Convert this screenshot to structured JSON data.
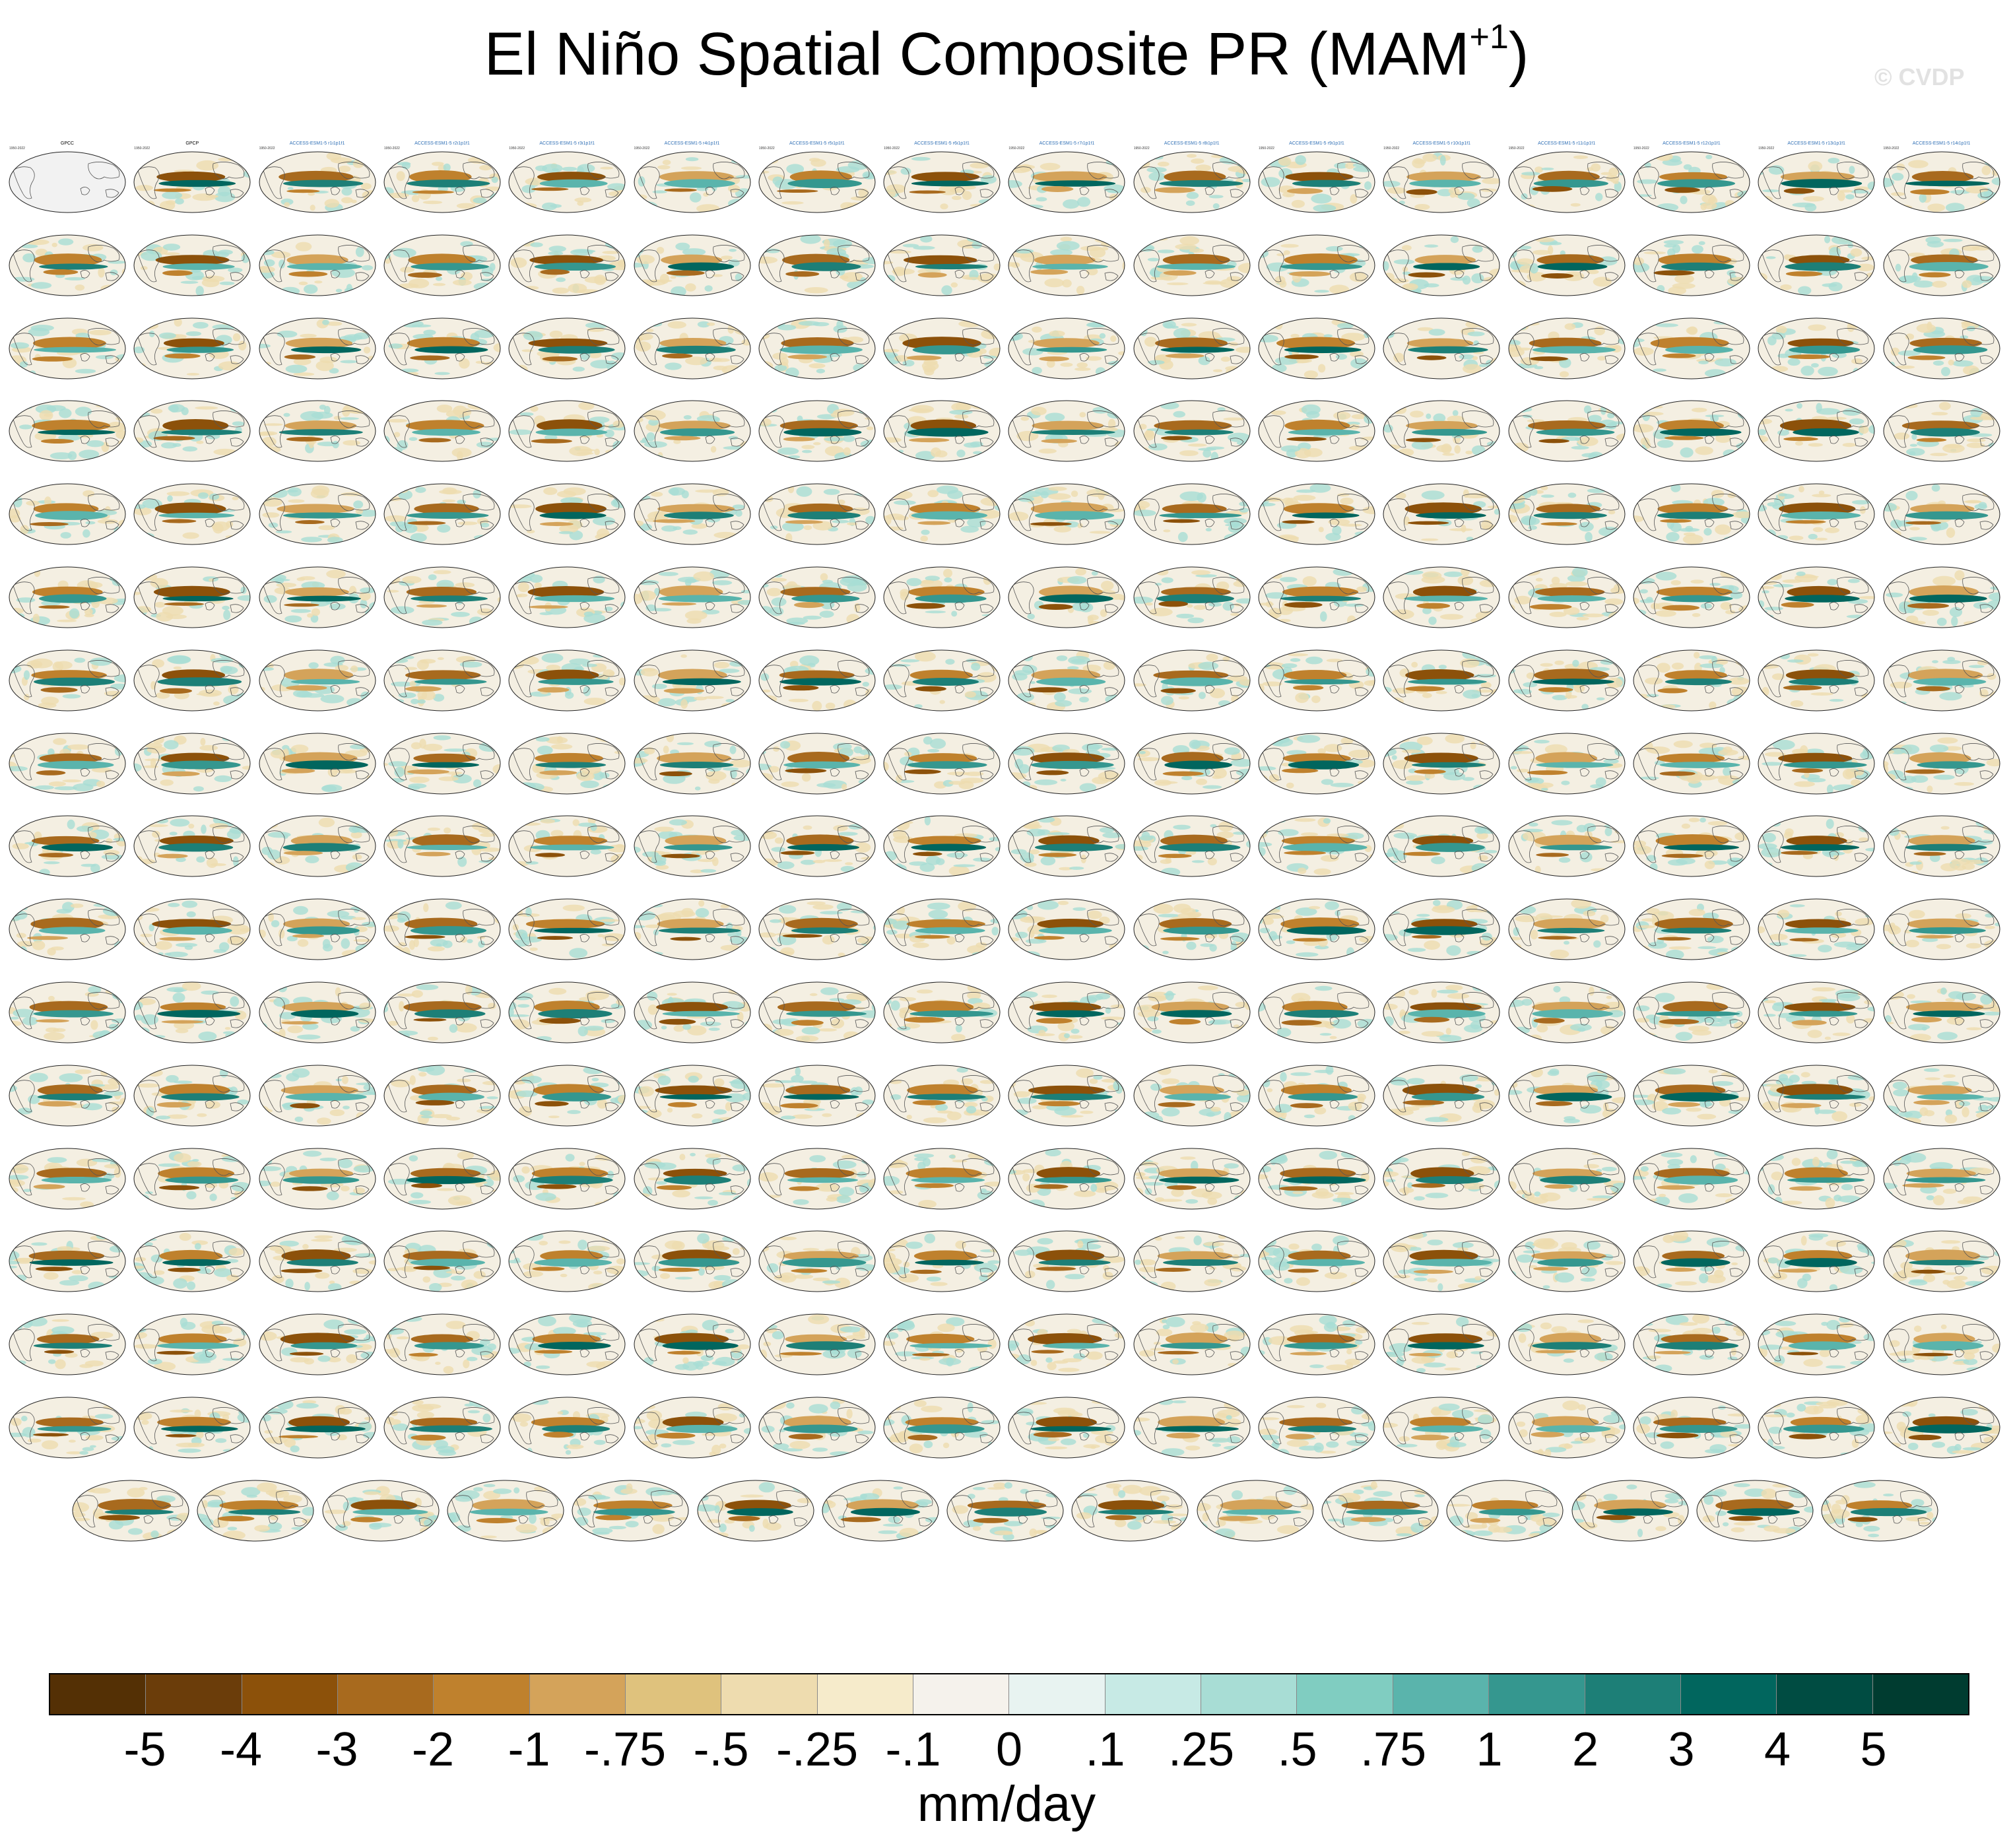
{
  "title": {
    "main": "El Niño Spatial Composite PR (MAM",
    "superscript": "+1",
    "close": ")"
  },
  "watermark": "© CVDP",
  "panel_grid": {
    "rows": 17,
    "columns": 16,
    "last_row_count": 15,
    "panel_titles": [
      "GPCC",
      "GPCP",
      "ACCESS-ESM1-5 r1i1p1f1",
      "ACCESS-ESM1-5 r2i1p1f1",
      "ACCESS-ESM1-5 r3i1p1f1",
      "ACCESS-ESM1-5 r4i1p1f1",
      "ACCESS-ESM1-5 r5i1p1f1",
      "ACCESS-ESM1-5 r6i1p1f1",
      "ACCESS-ESM1-5 r7i1p1f1",
      "ACCESS-ESM1-5 r8i1p1f1",
      "ACCESS-ESM1-5 r9i1p1f1",
      "ACCESS-ESM1-5 r10i1p1f1",
      "ACCESS-ESM1-5 r11i1p1f1",
      "ACCESS-ESM1-5 r12i1p1f1",
      "ACCESS-ESM1-5 r13i1p1f1",
      "ACCESS-ESM1-5 r14i1p1f1"
    ],
    "period_label": "1950-2022",
    "colors": {
      "title_obs": "#000000",
      "title_access": "#2f6fb5",
      "title_canesm": "#6aa84f",
      "title_cesm": "#c0392b",
      "title_cesm2": "#7b6fd6"
    }
  },
  "colorbar": {
    "colors": [
      "#543005",
      "#6b3d0a",
      "#8c510a",
      "#a86a1e",
      "#bf812d",
      "#d4a35a",
      "#dfc27d",
      "#eedcaf",
      "#f6ebcb",
      "#f5f2ec",
      "#e8f3f1",
      "#c7eae5",
      "#a8ddd5",
      "#80cdc1",
      "#5ab4ac",
      "#35978f",
      "#1d7f77",
      "#01665e",
      "#004c42",
      "#003c30"
    ],
    "labels": [
      "-5",
      "-4",
      "-3",
      "-2",
      "-1",
      "-.75",
      "-.5",
      "-.25",
      "-.1",
      "0",
      ".1",
      ".25",
      ".5",
      ".75",
      "1",
      "2",
      "3",
      "4",
      "5"
    ],
    "units": "mm/day"
  }
}
